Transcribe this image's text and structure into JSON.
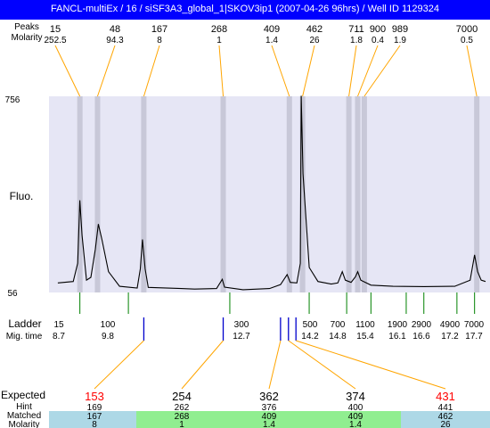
{
  "window": {
    "title": "FANCL-multiEx / 16 / siSF3A3_global_1|SKOV3ip1 (2007-04-26 96hrs) / Well ID 1129324"
  },
  "top_labels": {
    "row1": "Peaks",
    "row2": "Molarity"
  },
  "side_labels": {
    "ladder": "Ladder",
    "migtime": "Mig. time",
    "fluo": "Fluo."
  },
  "bottom_labels": {
    "expected": "Expected",
    "hint": "Hint",
    "matched": "Matched",
    "molarity": "Molarity"
  },
  "colors": {
    "title_bar": "#0000ff",
    "plot_bg": "#e6e6f5",
    "band": "#c8c8d8",
    "orange": "#ffa500",
    "green": "#008000",
    "blue": "#0000cc",
    "red": "#ff0000",
    "cell_green": "#90ee90",
    "cell_blue": "#add8e6"
  },
  "chart_data": {
    "type": "line",
    "ylabel": "Fluo.",
    "ylim": [
      56,
      756
    ],
    "yticks": [
      "756",
      "56"
    ],
    "peaks": [
      {
        "size": "15",
        "molarity": "252.5",
        "time": 8.7
      },
      {
        "size": "48",
        "molarity": "94.3",
        "time": 9.1
      },
      {
        "size": "167",
        "molarity": "8",
        "time": 10.1
      },
      {
        "size": "268",
        "molarity": "1",
        "time": 11.2
      },
      {
        "size": "409",
        "molarity": "1.4",
        "time": 13.2
      },
      {
        "size": "462",
        "molarity": "26",
        "time": 13.4
      },
      {
        "size": "711",
        "molarity": "1.8",
        "time": 14.8
      },
      {
        "size": "900",
        "molarity": "0.4",
        "time": 15.3
      },
      {
        "size": "989",
        "molarity": "1.9",
        "time": 15.4
      },
      {
        "size": "7000",
        "molarity": "0.5",
        "time": 17.7
      }
    ],
    "ladder": [
      {
        "size": "15",
        "time": "8.7"
      },
      {
        "size": "100",
        "time": "9.8"
      },
      {
        "size": "300",
        "time": "12.7"
      },
      {
        "size": "500",
        "time": "14.2"
      },
      {
        "size": "700",
        "time": "14.8"
      },
      {
        "size": "1100",
        "time": "15.4"
      },
      {
        "size": "1900",
        "time": "16.1"
      },
      {
        "size": "2900",
        "time": "16.6"
      },
      {
        "size": "4900",
        "time": "17.2"
      },
      {
        "size": "7000",
        "time": "17.7"
      }
    ],
    "trace": [
      [
        8.2,
        90
      ],
      [
        8.55,
        95
      ],
      [
        8.65,
        160
      ],
      [
        8.7,
        385
      ],
      [
        8.75,
        260
      ],
      [
        8.85,
        100
      ],
      [
        8.95,
        110
      ],
      [
        9.05,
        210
      ],
      [
        9.12,
        300
      ],
      [
        9.2,
        245
      ],
      [
        9.35,
        130
      ],
      [
        9.6,
        78
      ],
      [
        10.0,
        72
      ],
      [
        10.07,
        140
      ],
      [
        10.12,
        245
      ],
      [
        10.18,
        140
      ],
      [
        10.25,
        74
      ],
      [
        11.0,
        70
      ],
      [
        11.3,
        68
      ],
      [
        11.8,
        70
      ],
      [
        11.93,
        103
      ],
      [
        11.98,
        75
      ],
      [
        12.4,
        66
      ],
      [
        13.0,
        70
      ],
      [
        13.25,
        84
      ],
      [
        13.4,
        120
      ],
      [
        13.47,
        92
      ],
      [
        13.62,
        90
      ],
      [
        13.7,
        160
      ],
      [
        13.72,
        758
      ],
      [
        13.76,
        480
      ],
      [
        13.9,
        145
      ],
      [
        14.1,
        95
      ],
      [
        14.4,
        86
      ],
      [
        14.55,
        90
      ],
      [
        14.65,
        130
      ],
      [
        14.72,
        100
      ],
      [
        14.85,
        92
      ],
      [
        14.95,
        112
      ],
      [
        15.0,
        130
      ],
      [
        15.07,
        100
      ],
      [
        15.3,
        82
      ],
      [
        15.8,
        78
      ],
      [
        16.5,
        77
      ],
      [
        17.2,
        78
      ],
      [
        17.55,
        100
      ],
      [
        17.65,
        190
      ],
      [
        17.72,
        130
      ],
      [
        17.8,
        100
      ],
      [
        17.9,
        95
      ]
    ],
    "bands": [
      8.7,
      9.1,
      10.15,
      11.95,
      13.45,
      13.75,
      14.8,
      15.0,
      15.15,
      17.7
    ]
  },
  "expected": [
    {
      "value": "153",
      "red": true,
      "time": 10.15,
      "hint": "169",
      "matched": "167",
      "molarity": "8",
      "cell": "blue"
    },
    {
      "value": "254",
      "red": false,
      "time": 11.95,
      "hint": "262",
      "matched": "268",
      "molarity": "1",
      "cell": "green"
    },
    {
      "value": "362",
      "red": false,
      "time": 13.25,
      "hint": "376",
      "matched": "409",
      "molarity": "1.4",
      "cell": "green"
    },
    {
      "value": "374",
      "red": false,
      "time": 13.43,
      "hint": "400",
      "matched": "409",
      "molarity": "1.4",
      "cell": "green"
    },
    {
      "value": "431",
      "red": true,
      "time": 13.6,
      "hint": "441",
      "matched": "462",
      "molarity": "26",
      "cell": "blue"
    }
  ]
}
